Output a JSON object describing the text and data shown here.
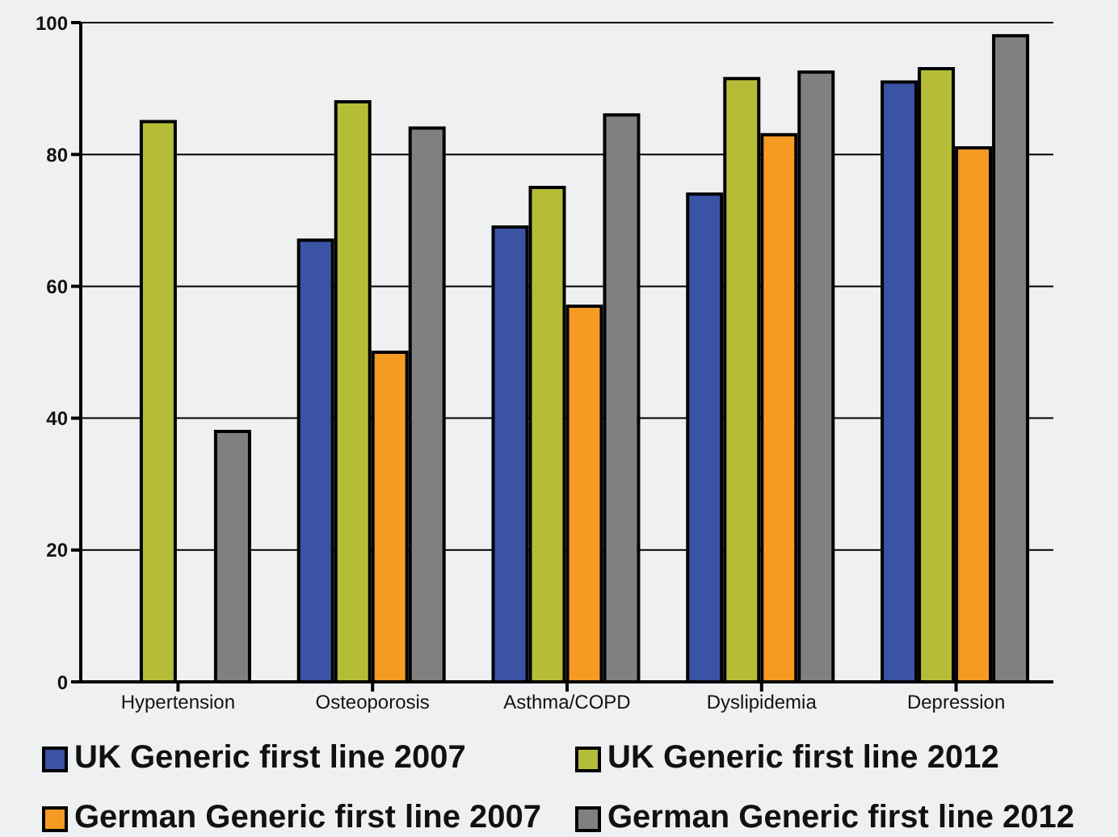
{
  "chart_data": {
    "type": "bar",
    "categories": [
      "Hypertension",
      "Osteoporosis",
      "Asthma/COPD",
      "Dyslipidemia",
      "Depression"
    ],
    "series": [
      {
        "name": "UK Generic first line 2007",
        "color": "#3a53a4",
        "values": [
          null,
          67,
          69,
          74,
          91
        ]
      },
      {
        "name": "UK Generic first line 2012",
        "color": "#b5bd38",
        "values": [
          85,
          88,
          75,
          91.5,
          93
        ]
      },
      {
        "name": "German Generic first line 2007",
        "color": "#f59a23",
        "values": [
          null,
          50,
          57,
          83,
          81
        ]
      },
      {
        "name": "German Generic first line 2012",
        "color": "#808080",
        "values": [
          38,
          84,
          86,
          92.5,
          98
        ]
      }
    ],
    "ylim": [
      0,
      100
    ],
    "yticks": [
      0,
      20,
      40,
      60,
      80,
      100
    ],
    "grid": "y",
    "legend": "bottom"
  }
}
